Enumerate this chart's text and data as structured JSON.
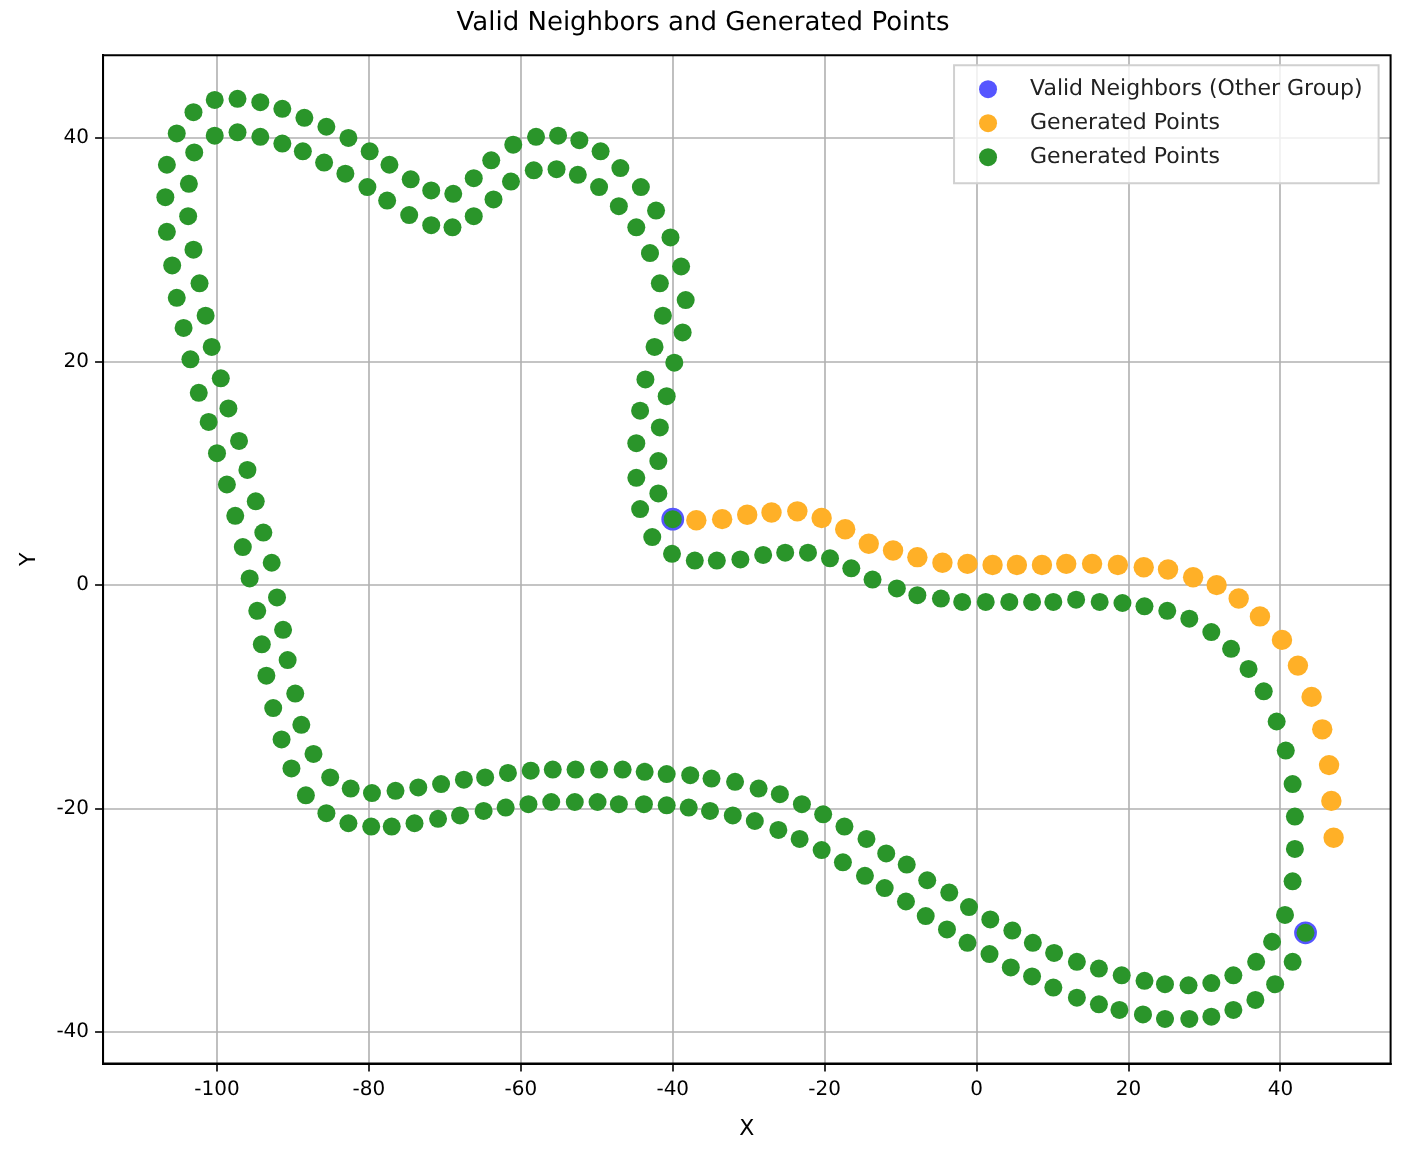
{
  "chart_data": {
    "type": "scatter",
    "title": "Valid Neighbors and Generated Points",
    "xlabel": "X",
    "ylabel": "Y",
    "xlim": [
      -115,
      54.5
    ],
    "ylim": [
      -42.8,
      47.4
    ],
    "xticks": [
      -100,
      -80,
      -60,
      -40,
      -20,
      0,
      20,
      40
    ],
    "yticks": [
      -40,
      -20,
      0,
      20,
      40
    ],
    "grid": true,
    "legend": "top right",
    "marker": "circle",
    "series": [
      {
        "name": "Valid Neighbors (Other Group)",
        "color": "#5555ff",
        "x": [
          -40.0,
          43.3
        ],
        "values": [
          5.9,
          -31.1
        ]
      },
      {
        "name": "Generated Points",
        "color": "#ffb027",
        "x": [
          -36.9,
          -33.5,
          -30.2,
          -27.0,
          -23.6,
          -20.4,
          -17.3,
          -14.2,
          -11.0,
          -7.8,
          -4.5,
          -1.2,
          2.1,
          5.3,
          8.6,
          11.8,
          15.2,
          18.6,
          22.0,
          25.2,
          28.5,
          31.6,
          34.5,
          37.3,
          40.2,
          42.3,
          44.1,
          45.5,
          46.4,
          46.7,
          47.0
        ],
        "values": [
          5.8,
          5.9,
          6.3,
          6.5,
          6.6,
          6.0,
          5.0,
          3.7,
          3.1,
          2.5,
          2.0,
          1.9,
          1.8,
          1.8,
          1.8,
          1.9,
          1.9,
          1.8,
          1.6,
          1.4,
          0.7,
          0,
          -1.2,
          -2.8,
          -4.9,
          -7.2,
          -10.0,
          -12.9,
          -16.1,
          -19.3,
          -22.6
        ]
      },
      {
        "name": "Generated Points",
        "color": "#2a952a",
        "x": [
          -105.3,
          -103.1,
          -100.3,
          -97.3,
          -94.3,
          -91.4,
          -88.5,
          -85.6,
          -82.7,
          -79.9,
          -77.3,
          -74.5,
          -71.8,
          -68.9,
          -66.2,
          -63.9,
          -61.0,
          -58.0,
          -55.1,
          -52.3,
          -49.5,
          -46.9,
          -44.2,
          -42.2,
          -40.3,
          -38.9,
          -38.3,
          -38.7,
          -39.8,
          -40.8,
          -41.7,
          -41.9,
          -41.9,
          -40.0,
          -106.6,
          -106.8,
          -106.6,
          -105.9,
          -105.3,
          -104.4,
          -103.5,
          -102.4,
          -101.1,
          -100.0,
          -98.7,
          -97.6,
          -96.6,
          -95.7,
          -94.7,
          -94.1,
          -93.5,
          -92.6,
          -91.5,
          -90.2,
          -88.3,
          -85.6,
          -82.7,
          -79.7,
          -77.0,
          -74.0,
          -70.9,
          -68.0,
          -64.9,
          -62.0,
          -59.0,
          -56.0,
          -52.9,
          -49.9,
          -47.1,
          -43.8,
          -40.8,
          -37.9,
          -35.1,
          -32.1,
          -100.3,
          -97.3,
          -94.3,
          -91.4,
          -88.7,
          -85.9,
          -83.1,
          -80.2,
          -77.6,
          -74.7,
          -71.8,
          -69.0,
          -66.2,
          -63.6,
          -61.3,
          -58.3,
          -55.3,
          -52.5,
          -49.7,
          -47.1,
          -44.8,
          -43.0,
          -41.7,
          -41.3,
          -42.4,
          -43.6,
          -44.3,
          -44.8,
          -44.8,
          -44.3,
          -42.7,
          -40.1,
          -103.0,
          -103.7,
          -103.8,
          -103.1,
          -102.3,
          -101.5,
          -100.7,
          -99.5,
          -98.5,
          -97.1,
          -96.0,
          -94.9,
          -93.9,
          -92.8,
          -92.1,
          -91.3,
          -90.7,
          -89.7,
          -88.9,
          -87.3,
          -85.1,
          -82.4,
          -79.6,
          -76.5,
          -73.5,
          -70.5,
          -67.5,
          -64.7,
          -61.7,
          -58.7,
          -55.8,
          -52.8,
          -49.7,
          -46.6,
          -43.7,
          -40.8,
          -37.7,
          -34.9,
          -31.8,
          -37.1,
          -34.2,
          -31.1,
          -28.1,
          -25.2,
          -22.2,
          -19.3,
          -16.5,
          -13.7,
          -10.5,
          -7.8,
          -4.7,
          -1.9,
          1.2,
          4.3,
          7.3,
          10.1,
          13.1,
          16.2,
          19.2,
          22.1,
          25.1,
          28.0,
          30.9,
          33.5,
          35.8,
          37.8,
          39.5,
          40.7,
          41.6,
          41.9,
          41.9,
          41.6,
          40.6,
          38.9,
          36.8,
          33.8,
          30.9,
          27.9,
          24.8,
          22.1,
          19.1,
          16.1,
          13.2,
          10.2,
          7.4,
          4.7,
          1.8,
          -1.0,
          -3.6,
          -6.5,
          -9.2,
          -11.9,
          -14.5,
          -17.4,
          -20.2,
          -23.0,
          -25.9,
          -28.7,
          -29.2,
          -26.1,
          -23.3,
          -20.4,
          -17.6,
          -14.7,
          -12.1,
          -9.3,
          -6.7,
          -3.9,
          -1.2,
          1.7,
          4.5,
          7.3,
          10.1,
          13.2,
          16.1,
          18.8,
          21.9,
          24.8,
          28.0,
          30.9,
          33.8,
          36.7,
          39.3,
          41.6,
          43.3
        ],
        "values": [
          40.4,
          42.3,
          43.4,
          43.5,
          43.2,
          42.6,
          41.8,
          41.0,
          40.0,
          38.8,
          37.6,
          36.3,
          35.3,
          35.0,
          36.4,
          38.0,
          39.4,
          40.1,
          40.2,
          39.8,
          38.8,
          37.3,
          35.6,
          33.5,
          31.1,
          28.5,
          25.5,
          22.6,
          19.9,
          16.9,
          14.1,
          11.1,
          8.2,
          5.9,
          37.6,
          34.7,
          31.6,
          28.6,
          25.7,
          23.0,
          20.2,
          17.2,
          14.6,
          11.8,
          9.0,
          6.2,
          3.4,
          0.6,
          -2.3,
          -5.3,
          -8.1,
          -11.0,
          -13.8,
          -16.4,
          -18.8,
          -20.4,
          -21.3,
          -21.6,
          -21.6,
          -21.3,
          -20.9,
          -20.6,
          -20.2,
          -19.9,
          -19.6,
          -19.4,
          -19.4,
          -19.4,
          -19.6,
          -19.6,
          -19.7,
          -19.9,
          -20.2,
          -20.6,
          40.2,
          40.5,
          40.1,
          39.5,
          38.8,
          37.8,
          36.8,
          35.6,
          34.4,
          33.1,
          32.2,
          32.0,
          33.0,
          34.5,
          36.1,
          37.1,
          37.2,
          36.7,
          35.6,
          33.9,
          32.0,
          29.7,
          27.0,
          24.1,
          21.3,
          18.4,
          15.6,
          12.7,
          9.6,
          6.8,
          4.3,
          2.8,
          38.7,
          35.9,
          33.0,
          30.0,
          27.0,
          24.1,
          21.3,
          18.5,
          15.8,
          12.9,
          10.3,
          7.5,
          4.7,
          2.0,
          -1.1,
          -4.0,
          -6.7,
          -9.7,
          -12.5,
          -15.1,
          -17.2,
          -18.2,
          -18.6,
          -18.4,
          -18.1,
          -17.8,
          -17.4,
          -17.2,
          -16.8,
          -16.6,
          -16.5,
          -16.5,
          -16.5,
          -16.5,
          -16.7,
          -16.9,
          -17.0,
          -17.3,
          -17.6,
          2.2,
          2.2,
          2.3,
          2.7,
          2.9,
          2.9,
          2.4,
          1.5,
          0.5,
          -0.3,
          -0.9,
          -1.2,
          -1.5,
          -1.5,
          -1.5,
          -1.5,
          -1.5,
          -1.3,
          -1.5,
          -1.6,
          -1.9,
          -2.3,
          -3.0,
          -4.2,
          -5.7,
          -7.5,
          -9.5,
          -12.2,
          -14.8,
          -17.8,
          -20.7,
          -23.6,
          -26.5,
          -29.5,
          -31.9,
          -33.7,
          -34.9,
          -35.6,
          -35.8,
          -35.7,
          -35.4,
          -34.9,
          -34.3,
          -33.7,
          -32.9,
          -32.0,
          -30.9,
          -29.9,
          -28.8,
          -27.5,
          -26.4,
          -25.0,
          -24.0,
          -22.7,
          -21.6,
          -20.5,
          -19.6,
          -18.7,
          -18.2,
          -21.1,
          -21.9,
          -22.7,
          -23.7,
          -24.8,
          -26.0,
          -27.1,
          -28.3,
          -29.6,
          -30.8,
          -32.0,
          -33.0,
          -34.2,
          -35.0,
          -36.0,
          -36.9,
          -37.5,
          -38.0,
          -38.4,
          -38.8,
          -38.8,
          -38.6,
          -38.0,
          -37.1,
          -35.7,
          -33.7,
          -31.1
        ]
      }
    ]
  }
}
